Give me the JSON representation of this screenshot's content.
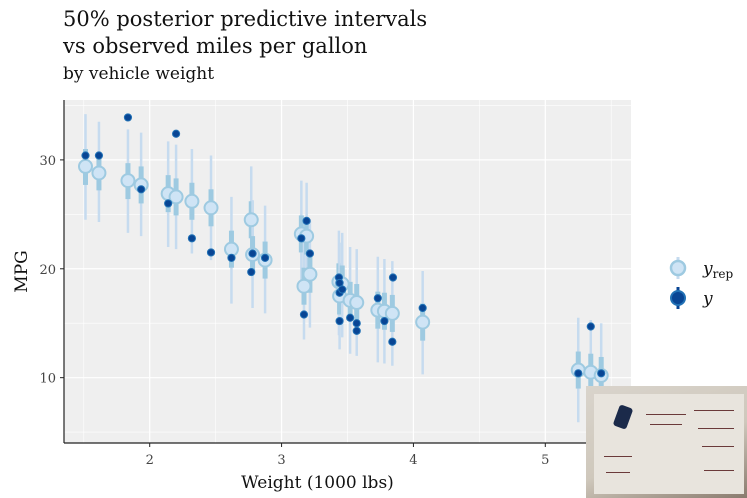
{
  "title_line1": "50% posterior predictive intervals",
  "title_line2": "vs observed miles per gallon",
  "subtitle": "by vehicle weight",
  "colors": {
    "panel_bg": "#efefef",
    "grid": "#ffffff",
    "yrep_outer": "#c6dbef",
    "yrep_inner": "#9ecae1",
    "yrep_fill": "#cfe4f5",
    "y_point": "#084594",
    "y_point_stroke": "#2171b5"
  },
  "legend": {
    "items": [
      {
        "label": "y",
        "sub": "rep"
      },
      {
        "label": "y",
        "sub": ""
      }
    ]
  },
  "chart_data": {
    "type": "scatter",
    "xlabel": "Weight (1000 lbs)",
    "ylabel": "MPG",
    "xlim": [
      1.35,
      5.65
    ],
    "ylim": [
      4.0,
      35.5
    ],
    "xticks": [
      2,
      3,
      4,
      5
    ],
    "yticks": [
      10,
      20,
      30
    ],
    "grid": true,
    "legend_position": "right",
    "series": [
      {
        "name": "y_rep",
        "points": [
          {
            "x": 1.513,
            "median": 29.4,
            "inner": [
              27.7,
              31.0
            ],
            "outer": [
              24.5,
              34.2
            ]
          },
          {
            "x": 1.615,
            "median": 28.8,
            "inner": [
              27.2,
              30.5
            ],
            "outer": [
              24.3,
              33.5
            ]
          },
          {
            "x": 1.835,
            "median": 28.1,
            "inner": [
              26.4,
              29.7
            ],
            "outer": [
              23.3,
              32.8
            ]
          },
          {
            "x": 1.935,
            "median": 27.7,
            "inner": [
              26.0,
              29.4
            ],
            "outer": [
              23.0,
              32.5
            ]
          },
          {
            "x": 2.14,
            "median": 26.9,
            "inner": [
              25.2,
              28.6
            ],
            "outer": [
              22.0,
              31.7
            ]
          },
          {
            "x": 2.2,
            "median": 26.6,
            "inner": [
              24.9,
              28.3
            ],
            "outer": [
              21.8,
              31.4
            ]
          },
          {
            "x": 2.32,
            "median": 26.2,
            "inner": [
              24.5,
              27.9
            ],
            "outer": [
              21.4,
              31.0
            ]
          },
          {
            "x": 2.465,
            "median": 25.6,
            "inner": [
              23.9,
              27.3
            ],
            "outer": [
              20.8,
              30.4
            ]
          },
          {
            "x": 2.62,
            "median": 21.8,
            "inner": [
              20.1,
              23.5
            ],
            "outer": [
              16.8,
              26.6
            ]
          },
          {
            "x": 2.77,
            "median": 24.5,
            "inner": [
              22.8,
              26.2
            ],
            "outer": [
              19.5,
              29.4
            ]
          },
          {
            "x": 2.78,
            "median": 21.3,
            "inner": [
              19.6,
              23.0
            ],
            "outer": [
              16.4,
              26.3
            ]
          },
          {
            "x": 2.875,
            "median": 20.8,
            "inner": [
              19.1,
              22.5
            ],
            "outer": [
              15.9,
              25.8
            ]
          },
          {
            "x": 3.15,
            "median": 23.2,
            "inner": [
              21.5,
              24.9
            ],
            "outer": [
              18.3,
              28.1
            ]
          },
          {
            "x": 3.17,
            "median": 18.4,
            "inner": [
              16.7,
              20.1
            ],
            "outer": [
              13.5,
              23.3
            ]
          },
          {
            "x": 3.19,
            "median": 23.0,
            "inner": [
              21.3,
              24.7
            ],
            "outer": [
              18.1,
              27.9
            ]
          },
          {
            "x": 3.215,
            "median": 19.5,
            "inner": [
              17.8,
              21.2
            ],
            "outer": [
              14.6,
              24.4
            ]
          },
          {
            "x": 3.435,
            "median": 18.8,
            "inner": [
              17.1,
              20.5
            ],
            "outer": [
              13.9,
              23.5
            ]
          },
          {
            "x": 3.44,
            "median": 17.5,
            "inner": [
              15.8,
              19.2
            ],
            "outer": [
              12.6,
              22.4
            ]
          },
          {
            "x": 3.46,
            "median": 18.6,
            "inner": [
              16.9,
              20.3
            ],
            "outer": [
              13.7,
              23.3
            ]
          },
          {
            "x": 3.52,
            "median": 17.1,
            "inner": [
              15.4,
              18.8
            ],
            "outer": [
              12.2,
              22.0
            ]
          },
          {
            "x": 3.57,
            "median": 16.9,
            "inner": [
              15.2,
              18.6
            ],
            "outer": [
              12.0,
              21.8
            ]
          },
          {
            "x": 3.73,
            "median": 16.2,
            "inner": [
              14.5,
              17.9
            ],
            "outer": [
              11.4,
              21.1
            ]
          },
          {
            "x": 3.78,
            "median": 16.1,
            "inner": [
              14.4,
              17.8
            ],
            "outer": [
              11.3,
              20.9
            ]
          },
          {
            "x": 3.84,
            "median": 15.9,
            "inner": [
              14.2,
              17.6
            ],
            "outer": [
              11.1,
              20.7
            ]
          },
          {
            "x": 4.07,
            "median": 15.1,
            "inner": [
              13.4,
              16.8
            ],
            "outer": [
              10.3,
              19.8
            ]
          },
          {
            "x": 5.25,
            "median": 10.7,
            "inner": [
              9.0,
              12.4
            ],
            "outer": [
              5.9,
              15.5
            ]
          },
          {
            "x": 5.345,
            "median": 10.5,
            "inner": [
              8.8,
              12.2
            ],
            "outer": [
              5.7,
              15.3
            ]
          },
          {
            "x": 5.424,
            "median": 10.2,
            "inner": [
              8.5,
              11.9
            ],
            "outer": [
              5.4,
              15.0
            ]
          }
        ]
      },
      {
        "name": "y",
        "points": [
          {
            "x": 1.513,
            "y": 30.4
          },
          {
            "x": 1.615,
            "y": 30.4
          },
          {
            "x": 1.835,
            "y": 33.9
          },
          {
            "x": 1.935,
            "y": 27.3
          },
          {
            "x": 2.14,
            "y": 26.0
          },
          {
            "x": 2.2,
            "y": 32.4
          },
          {
            "x": 2.32,
            "y": 22.8
          },
          {
            "x": 2.465,
            "y": 21.5
          },
          {
            "x": 2.62,
            "y": 21.0
          },
          {
            "x": 2.77,
            "y": 19.7
          },
          {
            "x": 2.78,
            "y": 21.4
          },
          {
            "x": 2.875,
            "y": 21.0
          },
          {
            "x": 3.15,
            "y": 22.8
          },
          {
            "x": 3.17,
            "y": 15.8
          },
          {
            "x": 3.19,
            "y": 24.4
          },
          {
            "x": 3.215,
            "y": 21.4
          },
          {
            "x": 3.435,
            "y": 19.2
          },
          {
            "x": 3.44,
            "y": 18.7
          },
          {
            "x": 3.44,
            "y": 17.8
          },
          {
            "x": 3.46,
            "y": 18.1
          },
          {
            "x": 3.44,
            "y": 15.2
          },
          {
            "x": 3.52,
            "y": 15.5
          },
          {
            "x": 3.57,
            "y": 15.0
          },
          {
            "x": 3.57,
            "y": 14.3
          },
          {
            "x": 3.73,
            "y": 17.3
          },
          {
            "x": 3.78,
            "y": 15.2
          },
          {
            "x": 3.84,
            "y": 13.3
          },
          {
            "x": 3.845,
            "y": 19.2
          },
          {
            "x": 4.07,
            "y": 16.4
          },
          {
            "x": 5.25,
            "y": 10.4
          },
          {
            "x": 5.345,
            "y": 14.7
          },
          {
            "x": 5.424,
            "y": 10.4
          }
        ]
      }
    ]
  }
}
